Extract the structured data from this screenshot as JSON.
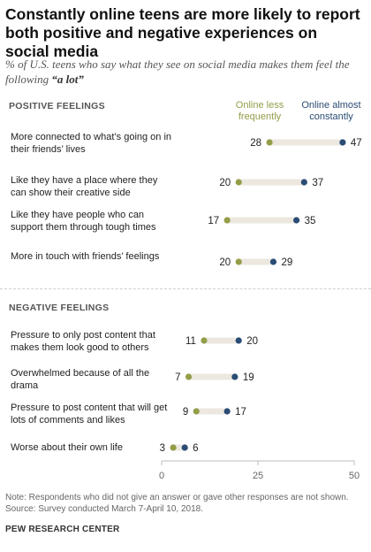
{
  "title": "Constantly online teens are more likely to report both positive and negative experiences on social media",
  "subtitle_prefix": "% of U.S. teens who say what they see on social media makes them feel the following ",
  "subtitle_emphasis": "“a lot”",
  "legend": {
    "less": "Online less frequently",
    "constant": "Online almost constantly"
  },
  "colors": {
    "less": "#949d48",
    "constant": "#2a4c74",
    "bar": "#ece8e0"
  },
  "sections": {
    "positive": "POSITIVE FEELINGS",
    "negative": "NEGATIVE FEELINGS"
  },
  "chart_data": {
    "type": "dot",
    "series": [
      {
        "name": "Online less frequently",
        "key": "less"
      },
      {
        "name": "Online almost constantly",
        "key": "constant"
      }
    ],
    "xlim": [
      0,
      50
    ],
    "xticks": [
      "0",
      "25",
      "50"
    ],
    "rows": [
      {
        "group": "positive",
        "label": "More connected to what’s going on in their friends’ lives",
        "less": 28,
        "constant": 47
      },
      {
        "group": "positive",
        "label": "Like they have a place where they can show their creative side",
        "less": 20,
        "constant": 37
      },
      {
        "group": "positive",
        "label": "Like they have people who can support them through tough times",
        "less": 17,
        "constant": 35
      },
      {
        "group": "positive",
        "label": "More in touch with friends’ feelings",
        "less": 20,
        "constant": 29
      },
      {
        "group": "negative",
        "label": "Pressure to only post content that makes them look good to others",
        "less": 11,
        "constant": 20
      },
      {
        "group": "negative",
        "label": "Overwhelmed because of all the drama",
        "less": 7,
        "constant": 19
      },
      {
        "group": "negative",
        "label": "Pressure to post content that will get lots of comments and likes",
        "less": 9,
        "constant": 17
      },
      {
        "group": "negative",
        "label": "Worse about their own life",
        "less": 3,
        "constant": 6
      }
    ]
  },
  "note": "Note: Respondents who did not give an answer or gave other responses are not shown.",
  "source": "Source: Survey conducted March 7-April 10, 2018.",
  "brand": "PEW RESEARCH CENTER"
}
